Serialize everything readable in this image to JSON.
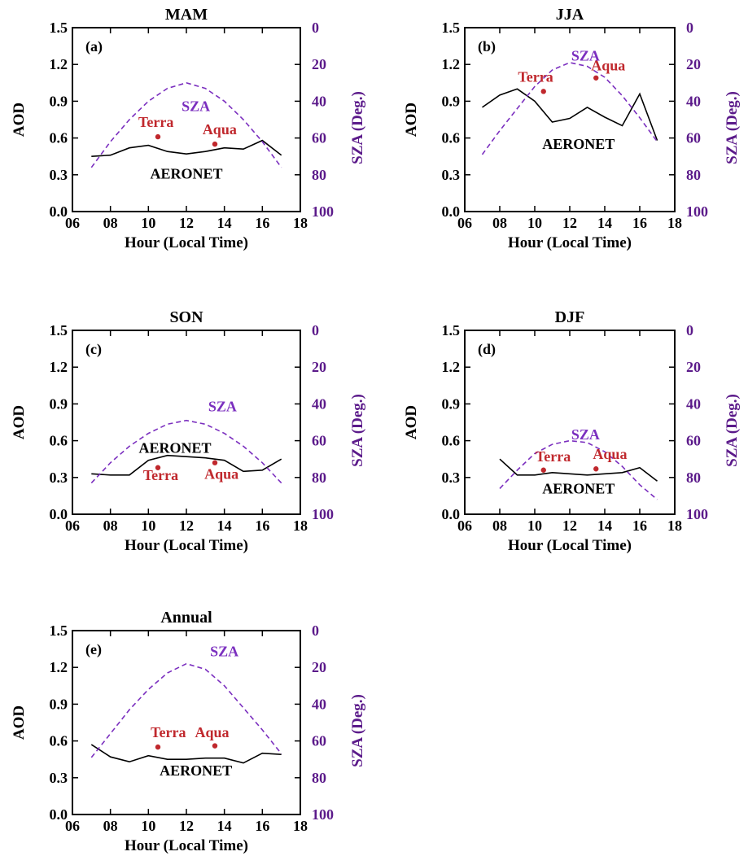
{
  "colors": {
    "aod": "#000000",
    "sza": "#7b2fbf",
    "sza_axis": "#5b1a8a",
    "sat": "#c0282d"
  },
  "chart_data": [
    {
      "type": "line",
      "title": "MAM",
      "panel": "(a)",
      "xlabel": "Hour (Local Time)",
      "ylabel": "AOD",
      "y2label": "SZA (Deg.)",
      "xlim": [
        6,
        18
      ],
      "ylim": [
        0,
        1.5
      ],
      "y2lim": [
        0,
        100
      ],
      "y2_inverted": true,
      "xticks": [
        "06",
        "08",
        "10",
        "12",
        "14",
        "16",
        "18"
      ],
      "yticks": [
        "0.0",
        "0.3",
        "0.6",
        "0.9",
        "1.2",
        "1.5"
      ],
      "y2ticks": [
        "0",
        "20",
        "40",
        "60",
        "80",
        "100"
      ],
      "series": [
        {
          "name": "AERONET",
          "axis": "left",
          "style": "solid",
          "x": [
            7,
            8,
            9,
            10,
            11,
            12,
            13,
            14,
            15,
            16,
            17
          ],
          "y": [
            0.45,
            0.46,
            0.52,
            0.54,
            0.49,
            0.47,
            0.49,
            0.52,
            0.51,
            0.58,
            0.46
          ]
        },
        {
          "name": "SZA",
          "axis": "right",
          "style": "dashed",
          "x": [
            7,
            8,
            9,
            10,
            11,
            12,
            13,
            14,
            15,
            16,
            17
          ],
          "y": [
            76,
            62,
            50,
            40,
            33,
            30,
            33,
            40,
            50,
            62,
            76
          ]
        }
      ],
      "points": [
        {
          "name": "Terra",
          "x": 10.5,
          "y": 0.61
        },
        {
          "name": "Aqua",
          "x": 13.5,
          "y": 0.55
        }
      ],
      "labels": {
        "sza": {
          "text": "SZA",
          "x": 12.5,
          "y": 0.82
        },
        "terra": {
          "text": "Terra",
          "x": 10.4,
          "y": 0.69
        },
        "aqua": {
          "text": "Aqua",
          "x": 13.75,
          "y": 0.63
        },
        "aeronet": {
          "text": "AERONET",
          "x": 12.0,
          "y": 0.27
        }
      }
    },
    {
      "type": "line",
      "title": "JJA",
      "panel": "(b)",
      "xlabel": "Hour (Local Time)",
      "ylabel": "AOD",
      "y2label": "SZA (Deg.)",
      "xlim": [
        6,
        18
      ],
      "ylim": [
        0,
        1.5
      ],
      "y2lim": [
        0,
        100
      ],
      "y2_inverted": true,
      "xticks": [
        "06",
        "08",
        "10",
        "12",
        "14",
        "16",
        "18"
      ],
      "yticks": [
        "0.0",
        "0.3",
        "0.6",
        "0.9",
        "1.2",
        "1.5"
      ],
      "y2ticks": [
        "0",
        "20",
        "40",
        "60",
        "80",
        "100"
      ],
      "series": [
        {
          "name": "AERONET",
          "axis": "left",
          "style": "solid",
          "x": [
            7,
            8,
            9,
            10,
            11,
            12,
            13,
            14,
            15,
            16,
            17
          ],
          "y": [
            0.85,
            0.95,
            1.0,
            0.9,
            0.73,
            0.76,
            0.85,
            0.77,
            0.7,
            0.96,
            0.58
          ]
        },
        {
          "name": "SZA",
          "axis": "right",
          "style": "dashed",
          "x": [
            7,
            8,
            9,
            10,
            11,
            12,
            13,
            14,
            15,
            16,
            17
          ],
          "y": [
            69,
            56,
            44,
            32,
            23,
            19,
            21,
            27,
            37,
            49,
            62
          ]
        }
      ],
      "points": [
        {
          "name": "Terra",
          "x": 10.5,
          "y": 0.98
        },
        {
          "name": "Aqua",
          "x": 13.5,
          "y": 1.09
        }
      ],
      "labels": {
        "sza": {
          "text": "SZA",
          "x": 12.9,
          "y": 1.23
        },
        "terra": {
          "text": "Terra",
          "x": 10.05,
          "y": 1.06
        },
        "aqua": {
          "text": "Aqua",
          "x": 14.2,
          "y": 1.15
        },
        "aeronet": {
          "text": "AERONET",
          "x": 12.5,
          "y": 0.51
        }
      }
    },
    {
      "type": "line",
      "title": "SON",
      "panel": "(c)",
      "xlabel": "Hour (Local Time)",
      "ylabel": "AOD",
      "y2label": "SZA (Deg.)",
      "xlim": [
        6,
        18
      ],
      "ylim": [
        0,
        1.5
      ],
      "y2lim": [
        0,
        100
      ],
      "y2_inverted": true,
      "xticks": [
        "06",
        "08",
        "10",
        "12",
        "14",
        "16",
        "18"
      ],
      "yticks": [
        "0.0",
        "0.3",
        "0.6",
        "0.9",
        "1.2",
        "1.5"
      ],
      "y2ticks": [
        "0",
        "20",
        "40",
        "60",
        "80",
        "100"
      ],
      "series": [
        {
          "name": "AERONET",
          "axis": "left",
          "style": "solid",
          "x": [
            7,
            8,
            9,
            10,
            11,
            12,
            13,
            14,
            15,
            16,
            17
          ],
          "y": [
            0.33,
            0.32,
            0.32,
            0.44,
            0.48,
            0.47,
            0.46,
            0.44,
            0.35,
            0.36,
            0.45
          ]
        },
        {
          "name": "SZA",
          "axis": "right",
          "style": "dashed",
          "x": [
            7,
            8,
            9,
            10,
            11,
            12,
            13,
            14,
            15,
            16,
            17
          ],
          "y": [
            83,
            72,
            63,
            56,
            51,
            49,
            51,
            56,
            63,
            72,
            83
          ]
        }
      ],
      "points": [
        {
          "name": "Terra",
          "x": 10.5,
          "y": 0.38
        },
        {
          "name": "Aqua",
          "x": 13.5,
          "y": 0.42
        }
      ],
      "labels": {
        "sza": {
          "text": "SZA",
          "x": 13.9,
          "y": 0.84
        },
        "terra": {
          "text": "Terra",
          "x": 10.65,
          "y": 0.28
        },
        "aqua": {
          "text": "Aqua",
          "x": 13.85,
          "y": 0.29
        },
        "aeronet": {
          "text": "AERONET",
          "x": 11.4,
          "y": 0.5
        }
      }
    },
    {
      "type": "line",
      "title": "DJF",
      "panel": "(d)",
      "xlabel": "Hour (Local Time)",
      "ylabel": "AOD",
      "y2label": "SZA (Deg.)",
      "xlim": [
        6,
        18
      ],
      "ylim": [
        0,
        1.5
      ],
      "y2lim": [
        0,
        100
      ],
      "y2_inverted": true,
      "xticks": [
        "06",
        "08",
        "10",
        "12",
        "14",
        "16",
        "18"
      ],
      "yticks": [
        "0.0",
        "0.3",
        "0.6",
        "0.9",
        "1.2",
        "1.5"
      ],
      "y2ticks": [
        "0",
        "20",
        "40",
        "60",
        "80",
        "100"
      ],
      "series": [
        {
          "name": "AERONET",
          "axis": "left",
          "style": "solid",
          "x": [
            8,
            9,
            10,
            11,
            12,
            13,
            14,
            15,
            16,
            17
          ],
          "y": [
            0.45,
            0.32,
            0.32,
            0.34,
            0.33,
            0.32,
            0.33,
            0.34,
            0.38,
            0.27
          ]
        },
        {
          "name": "SZA",
          "axis": "right",
          "style": "dashed",
          "x": [
            8,
            9,
            10,
            11,
            12,
            13,
            14,
            15,
            16,
            17
          ],
          "y": [
            86,
            76,
            67,
            62,
            60,
            61,
            66,
            74,
            84,
            92
          ]
        }
      ],
      "points": [
        {
          "name": "Terra",
          "x": 10.5,
          "y": 0.36
        },
        {
          "name": "Aqua",
          "x": 13.5,
          "y": 0.37
        }
      ],
      "labels": {
        "sza": {
          "text": "SZA",
          "x": 12.9,
          "y": 0.61
        },
        "terra": {
          "text": "Terra",
          "x": 11.05,
          "y": 0.43
        },
        "aqua": {
          "text": "Aqua",
          "x": 14.3,
          "y": 0.45
        },
        "aeronet": {
          "text": "AERONET",
          "x": 12.5,
          "y": 0.17
        }
      }
    },
    {
      "type": "line",
      "title": "Annual",
      "panel": "(e)",
      "xlabel": "Hour (Local Time)",
      "ylabel": "AOD",
      "y2label": "SZA (Deg.)",
      "xlim": [
        6,
        18
      ],
      "ylim": [
        0,
        1.5
      ],
      "y2lim": [
        0,
        100
      ],
      "y2_inverted": true,
      "xticks": [
        "06",
        "08",
        "10",
        "12",
        "14",
        "16",
        "18"
      ],
      "yticks": [
        "0.0",
        "0.3",
        "0.6",
        "0.9",
        "1.2",
        "1.5"
      ],
      "y2ticks": [
        "0",
        "20",
        "40",
        "60",
        "80",
        "100"
      ],
      "series": [
        {
          "name": "AERONET",
          "axis": "left",
          "style": "solid",
          "x": [
            7,
            8,
            9,
            10,
            11,
            12,
            13,
            14,
            15,
            16,
            17
          ],
          "y": [
            0.57,
            0.47,
            0.43,
            0.48,
            0.45,
            0.45,
            0.46,
            0.46,
            0.42,
            0.5,
            0.49
          ]
        },
        {
          "name": "SZA",
          "axis": "right",
          "style": "dashed",
          "x": [
            7,
            8,
            9,
            10,
            11,
            12,
            13,
            14,
            15,
            16,
            17
          ],
          "y": [
            69,
            56,
            43,
            32,
            23,
            18,
            21,
            30,
            42,
            54,
            67
          ]
        }
      ],
      "points": [
        {
          "name": "Terra",
          "x": 10.5,
          "y": 0.55
        },
        {
          "name": "Aqua",
          "x": 13.5,
          "y": 0.56
        }
      ],
      "labels": {
        "sza": {
          "text": "SZA",
          "x": 14.0,
          "y": 1.29
        },
        "terra": {
          "text": "Terra",
          "x": 11.05,
          "y": 0.63
        },
        "aqua": {
          "text": "Aqua",
          "x": 13.35,
          "y": 0.63
        },
        "aeronet": {
          "text": "AERONET",
          "x": 12.5,
          "y": 0.32
        }
      }
    }
  ]
}
